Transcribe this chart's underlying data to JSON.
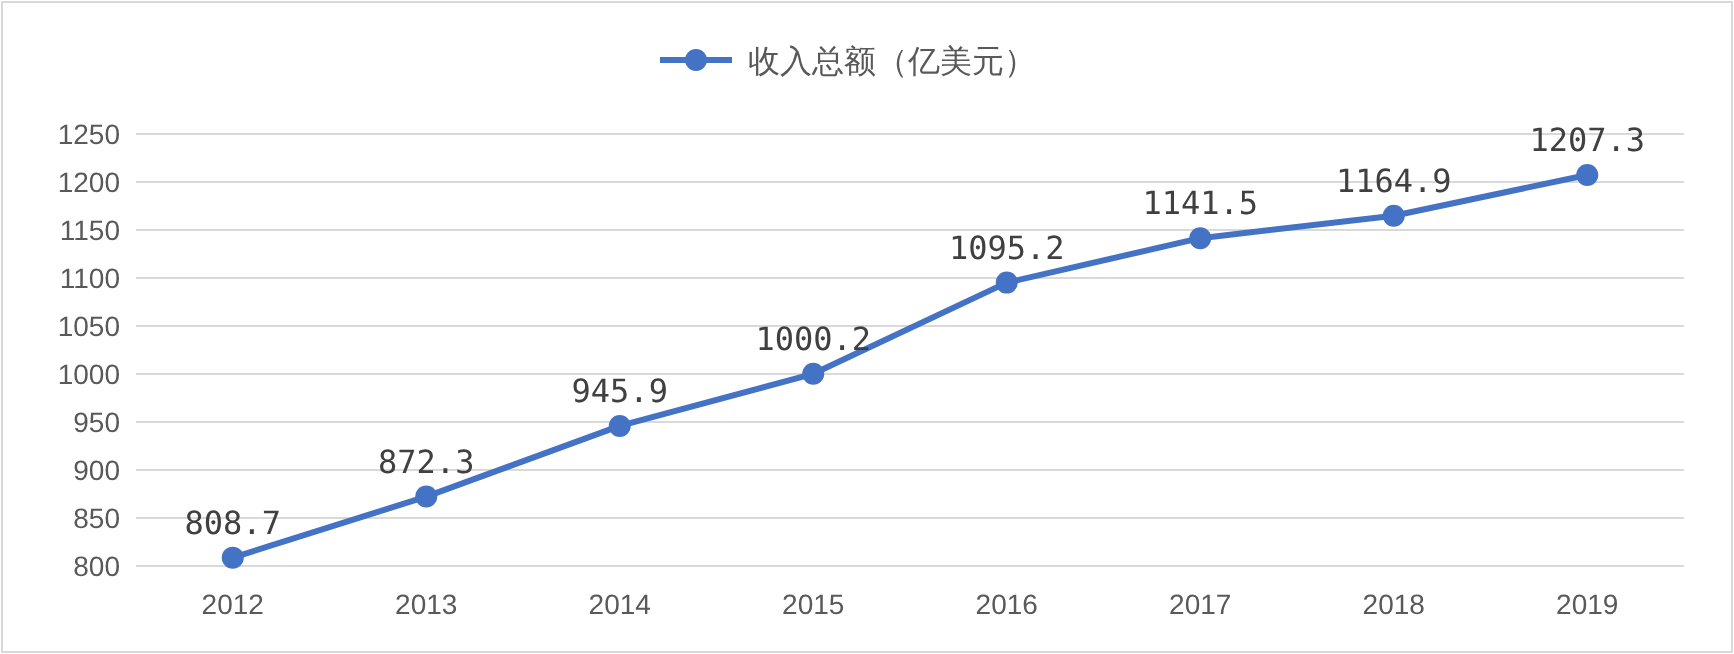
{
  "chart_data": {
    "type": "line",
    "categories": [
      "2012",
      "2013",
      "2014",
      "2015",
      "2016",
      "2017",
      "2018",
      "2019"
    ],
    "series": [
      {
        "name": "收入总额（亿美元）",
        "color": "#4472c4",
        "values": [
          808.7,
          872.3,
          945.9,
          1000.2,
          1095.2,
          1141.5,
          1164.9,
          1207.3
        ]
      }
    ],
    "ylim": [
      800,
      1250
    ],
    "yticks": [
      800,
      850,
      900,
      950,
      1000,
      1050,
      1100,
      1150,
      1200,
      1250
    ],
    "grid": "y",
    "legend": "top",
    "marker": "circle",
    "line_style": "solid",
    "data_labels": true
  }
}
